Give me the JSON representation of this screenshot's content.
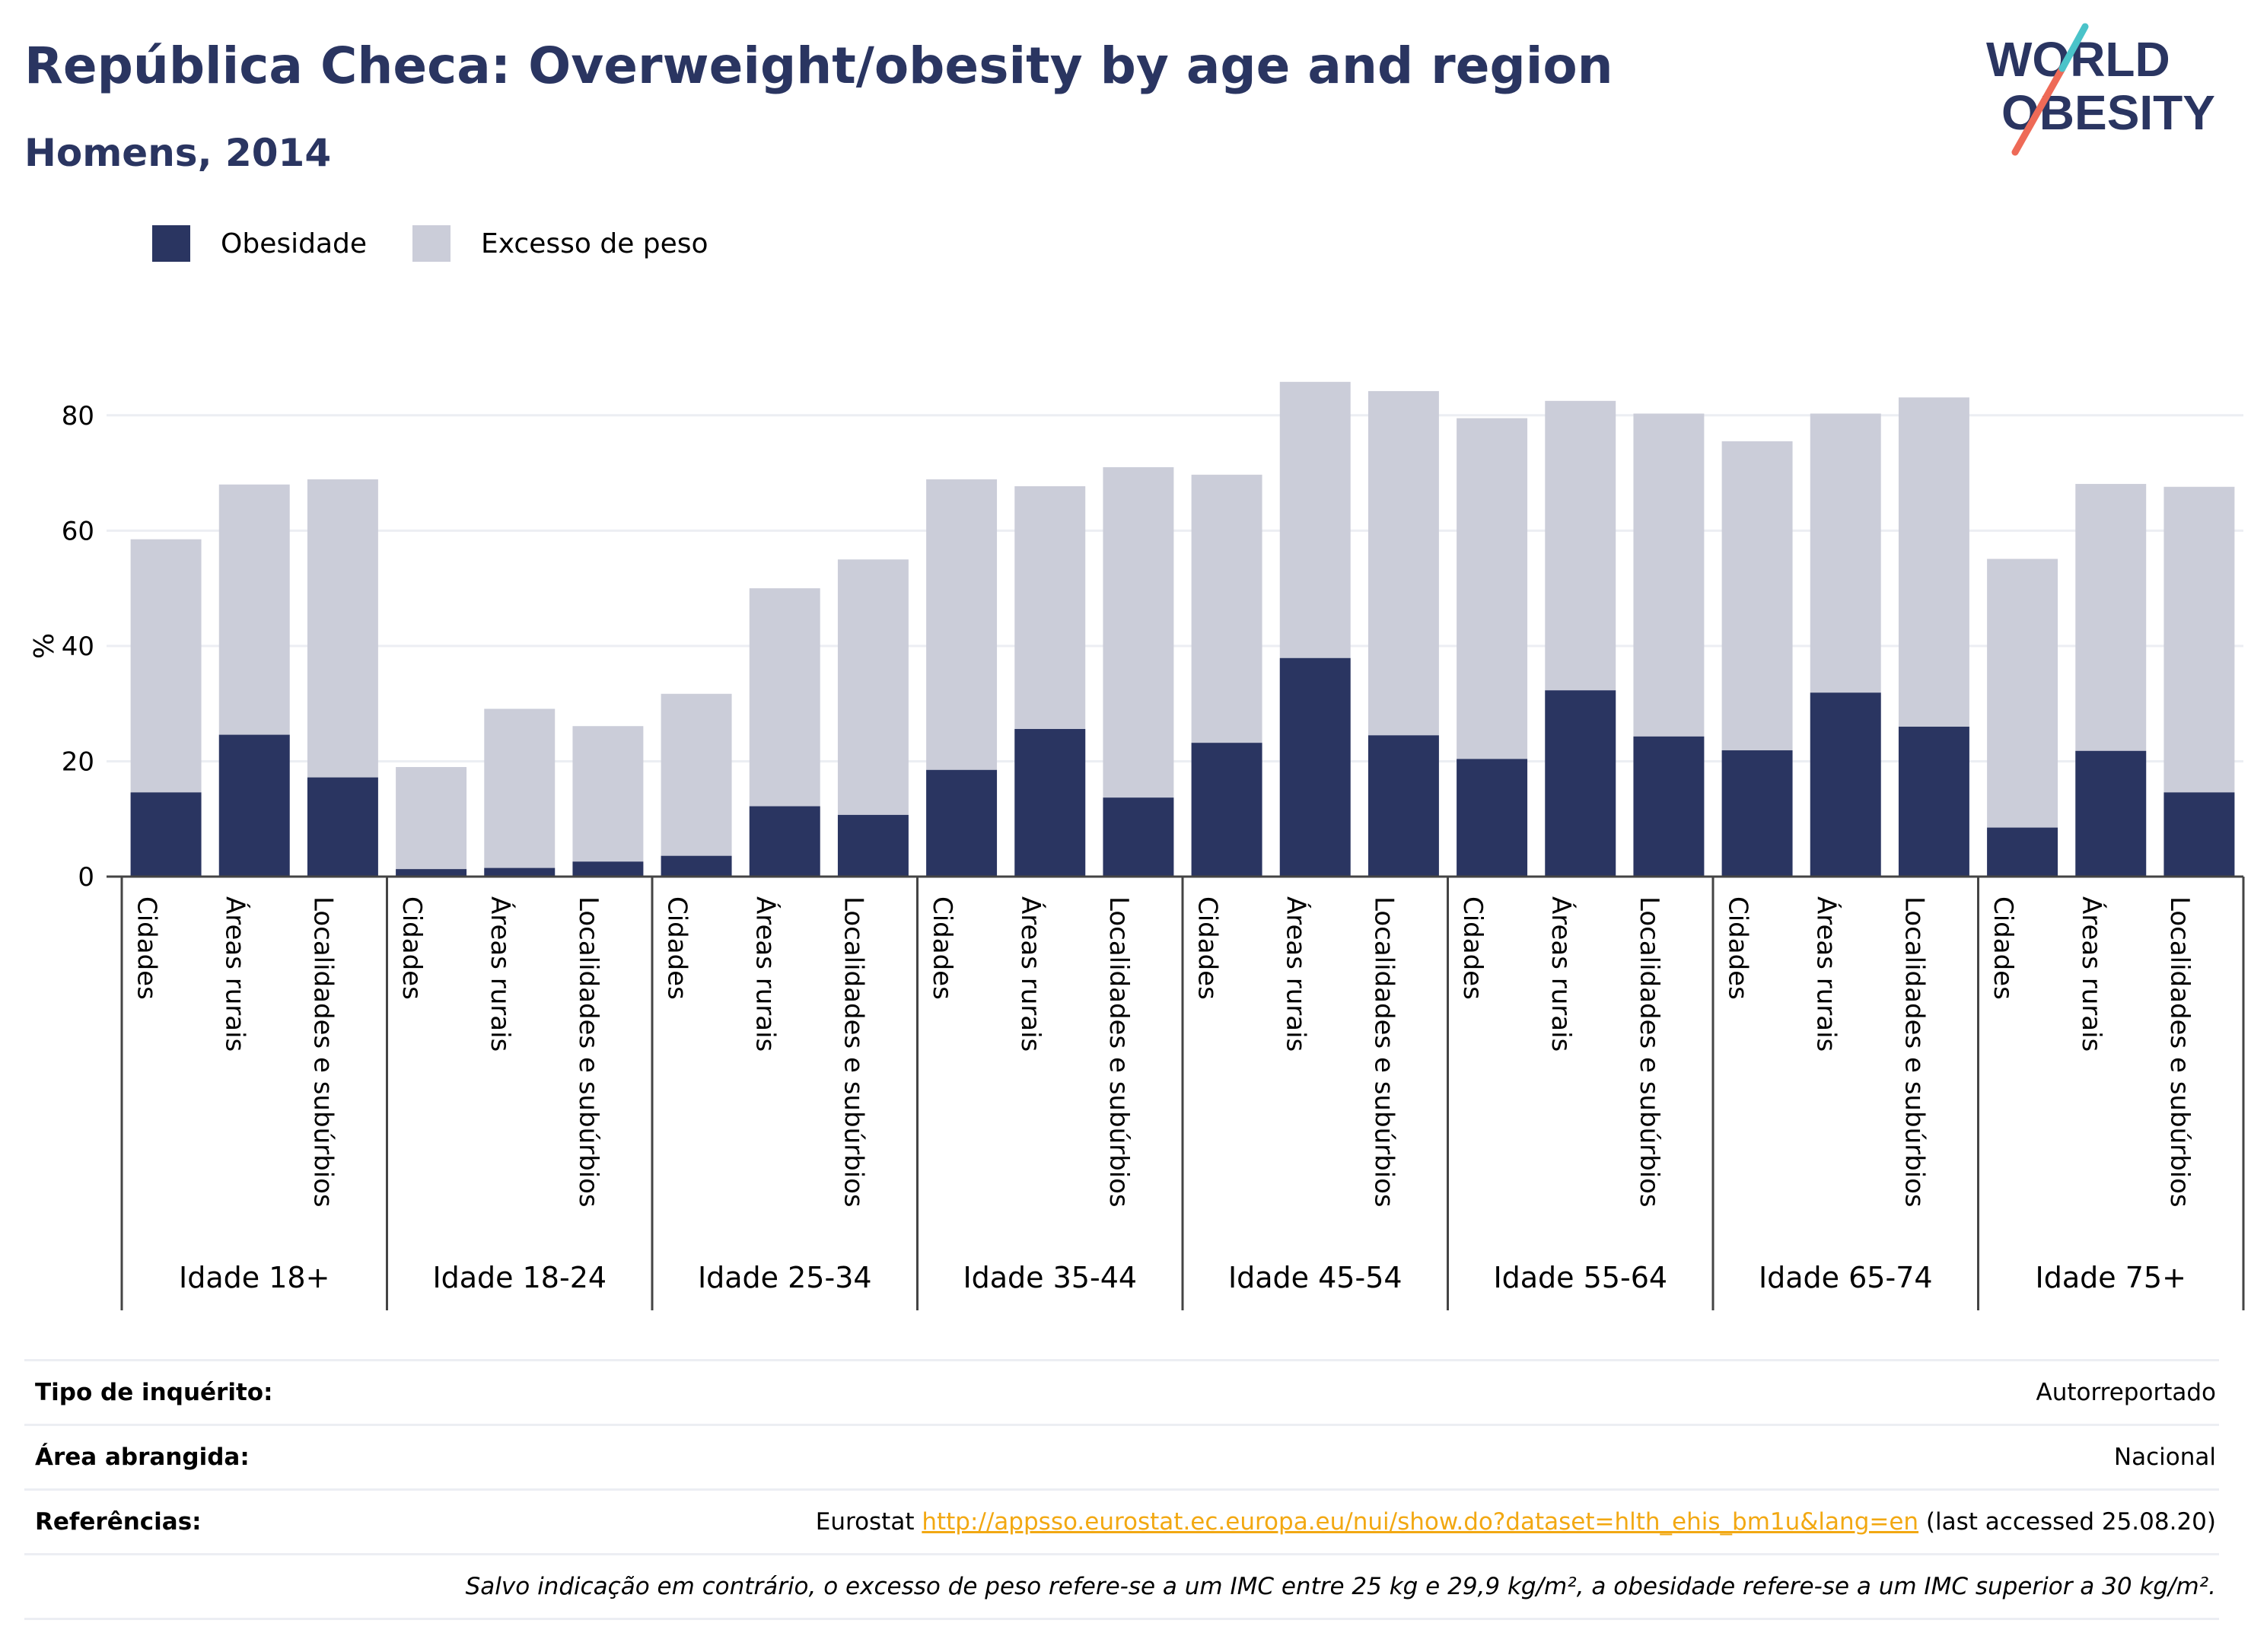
{
  "title": "República Checa: Overweight/obesity by age and region",
  "subtitle": "Homens, 2014",
  "logo": {
    "line1": "WORLD",
    "line2": "OBESITY"
  },
  "legend": [
    {
      "label": "Obesidade",
      "color": "#2a3561"
    },
    {
      "label": "Excesso de peso",
      "color": "#cbcdd9"
    }
  ],
  "chart_data": {
    "type": "bar",
    "stacked": "overlay",
    "ylabel": "%",
    "ylim": [
      0,
      90
    ],
    "yticks": [
      0,
      20,
      40,
      60,
      80
    ],
    "grid": true,
    "legend_position": "top-left",
    "groups": [
      "Idade 18+",
      "Idade 18-24",
      "Idade 25-34",
      "Idade 35-44",
      "Idade 45-54",
      "Idade 55-64",
      "Idade 65-74",
      "Idade 75+"
    ],
    "subcategories": [
      "Cidades",
      "Áreas rurais",
      "Localidades e subúrbios"
    ],
    "series": [
      {
        "name": "Obesidade",
        "color": "#2a3561",
        "values": [
          14.6,
          24.6,
          17.2,
          1.3,
          1.5,
          2.6,
          3.6,
          12.2,
          10.7,
          18.5,
          25.6,
          13.7,
          23.2,
          37.9,
          24.5,
          20.4,
          32.3,
          24.3,
          21.9,
          31.9,
          26.0,
          8.5,
          21.8,
          14.6
        ]
      },
      {
        "name": "Excesso de peso",
        "color": "#cbcdd9",
        "values": [
          58.5,
          68.0,
          68.9,
          19.0,
          29.1,
          26.1,
          31.7,
          50.0,
          55.0,
          68.9,
          67.7,
          71.0,
          69.7,
          85.8,
          84.2,
          79.5,
          82.5,
          80.3,
          75.5,
          80.3,
          83.1,
          55.1,
          68.1,
          67.6
        ]
      }
    ]
  },
  "info": {
    "survey_label": "Tipo de inquérito:",
    "survey_value": "Autorreportado",
    "area_label": "Área abrangida:",
    "area_value": "Nacional",
    "ref_label": "Referências:",
    "ref_prefix": "Eurostat ",
    "ref_link": "http://appsso.eurostat.ec.europa.eu/nui/show.do?dataset=hlth_ehis_bm1u&lang=en",
    "ref_suffix": " (last accessed 25.08.20)",
    "note": "Salvo indicação em contrário, o excesso de peso refere-se a um IMC entre 25 kg e 29,9 kg/m², a obesidade refere-se a um IMC superior a 30 kg/m²."
  }
}
